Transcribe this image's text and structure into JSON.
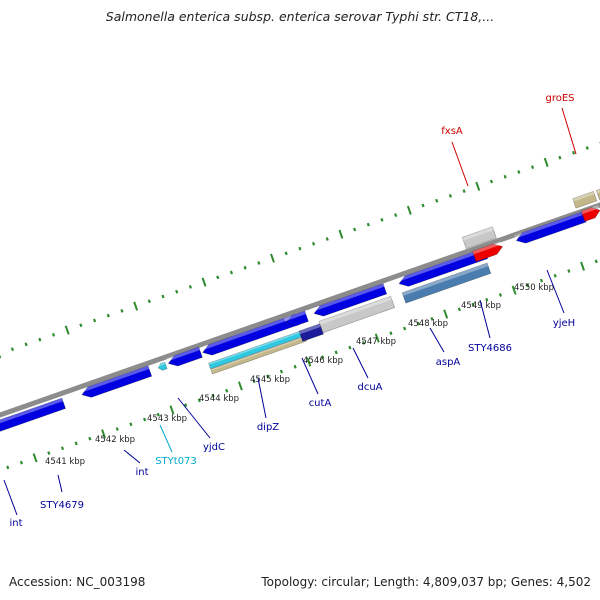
{
  "title": "Salmonella enterica subsp. enterica serovar Typhi str. CT18,...",
  "footer": {
    "accession": "Accession: NC_003198",
    "topology": "Topology: circular; Length: 4,809,037 bp; Genes: 4,502"
  },
  "colors": {
    "backbone": "#8c8c8c",
    "cds": "#0000e0",
    "cds_dark": "#1c1c9a",
    "rrna_tRNA": "#2ec8e0",
    "pseudo": "#c8c8c8",
    "rna_red": "#ee0000",
    "tan": "#c4b88a",
    "steel": "#4a7cb0",
    "ticks": "#2e8b2e",
    "label_blue": "#000099",
    "label_cyan": "#00aacc",
    "label_red": "#cc0000"
  },
  "scale_labels": [
    "4541 kbp",
    "4542 kbp",
    "4543 kbp",
    "4544 kbp",
    "4545 kbp",
    "4546 kbp",
    "4547 kbp",
    "4548 kbp",
    "4549 kbp",
    "4550 kbp"
  ],
  "gene_labels": [
    {
      "name": "int",
      "color": "blue"
    },
    {
      "name": "STY4679",
      "color": "blue"
    },
    {
      "name": "int",
      "color": "blue"
    },
    {
      "name": "STYt073",
      "color": "cyan"
    },
    {
      "name": "yjdC",
      "color": "blue"
    },
    {
      "name": "dipZ",
      "color": "blue"
    },
    {
      "name": "cutA",
      "color": "blue"
    },
    {
      "name": "dcuA",
      "color": "blue"
    },
    {
      "name": "aspA",
      "color": "blue"
    },
    {
      "name": "STY4686",
      "color": "blue"
    },
    {
      "name": "yjeH",
      "color": "blue"
    },
    {
      "name": "fxsA",
      "color": "red"
    },
    {
      "name": "groES",
      "color": "red"
    }
  ]
}
